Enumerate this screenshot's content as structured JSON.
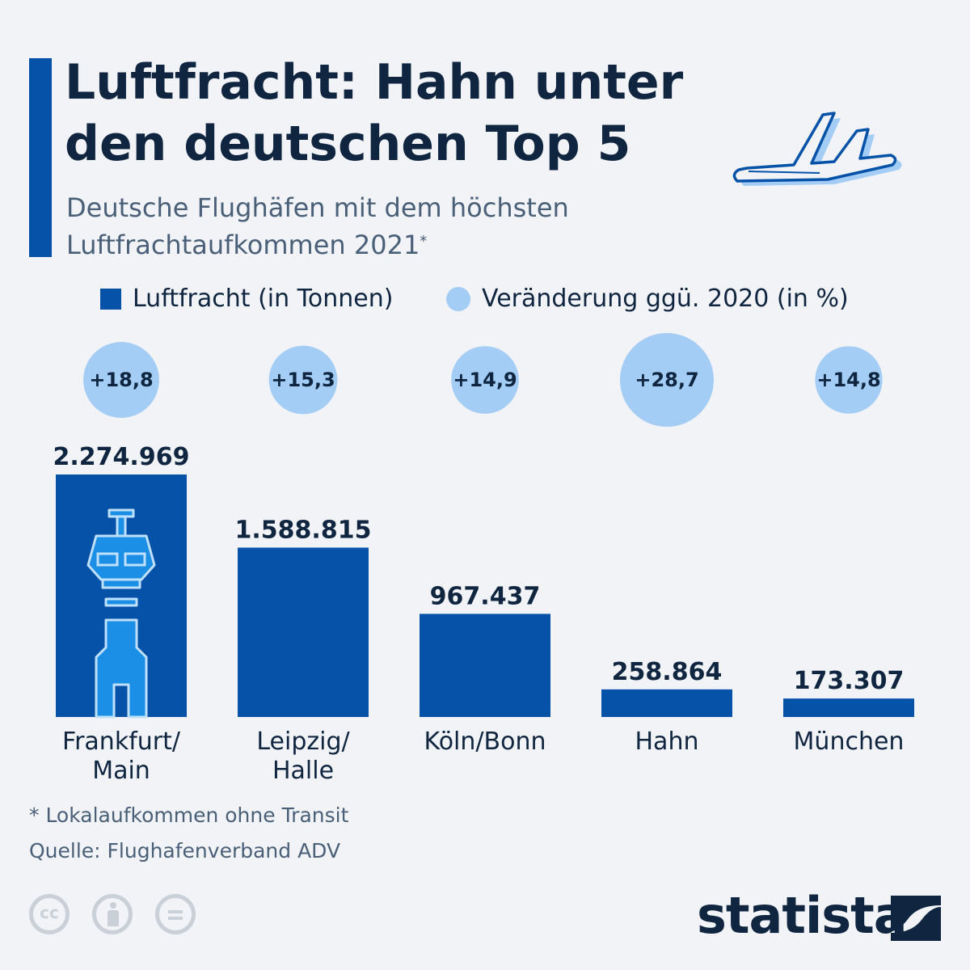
{
  "header": {
    "title_lines": [
      "Luftfracht: Hahn unter",
      "den deutschen Top 5"
    ],
    "subtitle_lines": [
      "Deutsche Flughäfen mit dem höchsten",
      "Luftfrachtaufkommen 2021"
    ],
    "subtitle_mark": "*"
  },
  "icons": {
    "plane": "plane-icon",
    "tower": "control-tower-icon",
    "license": [
      "cc-icon",
      "attribution-icon",
      "no-derivatives-icon"
    ]
  },
  "colors": {
    "bar": "#0552a8",
    "bubble": "#a3cdf5",
    "text_dark": "#0f2540",
    "background": "#f1f3f6",
    "tower_fill": "#1b8fe6"
  },
  "chart_data": {
    "type": "bar",
    "categories": [
      [
        "Frankfurt/",
        "Main"
      ],
      [
        "Leipzig/",
        "Halle"
      ],
      [
        "Köln/Bonn"
      ],
      [
        "Hahn"
      ],
      [
        "München"
      ]
    ],
    "series": [
      {
        "name": "Luftfracht (in Tonnen)",
        "values": [
          2274969,
          1588815,
          967437,
          258864,
          173307
        ],
        "labels": [
          "2.274.969",
          "1.588.815",
          "967.437",
          "258.864",
          "173.307"
        ]
      },
      {
        "name": "Veränderung ggü. 2020 (in %)",
        "values": [
          18.8,
          15.3,
          14.9,
          28.7,
          14.8
        ],
        "labels": [
          "+18,8",
          "+15,3",
          "+14,9",
          "+28,7",
          "+14,8"
        ]
      }
    ],
    "legend_position": "top",
    "grid": false
  },
  "legend": {
    "items": [
      "Luftfracht (in Tonnen)",
      "Veränderung ggü. 2020 (in %)"
    ]
  },
  "footer": {
    "footnote": "* Lokalaufkommen ohne Transit",
    "source": "Quelle: Flughafenverband ADV",
    "brand": "statista"
  }
}
